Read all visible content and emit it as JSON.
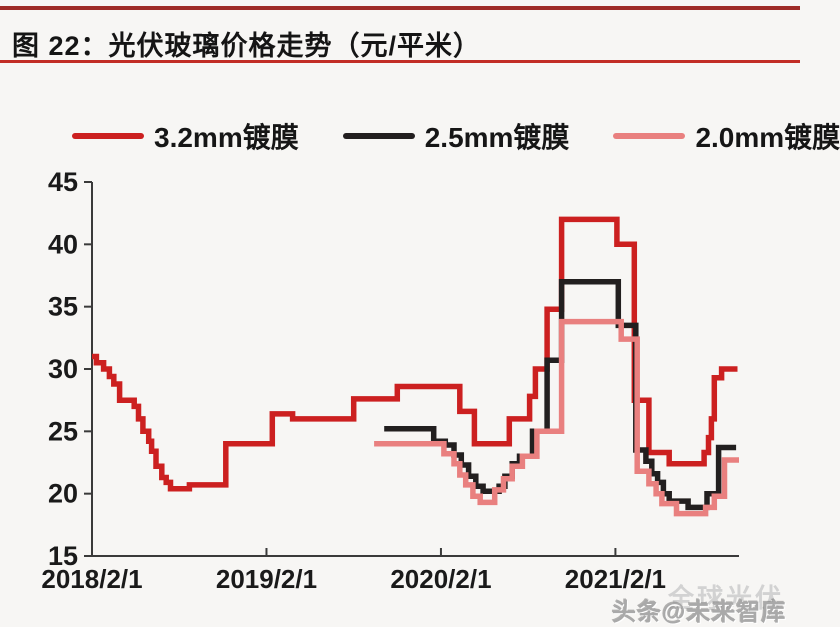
{
  "page": {
    "background": "#f7f6f4"
  },
  "header": {
    "title": "图 22：光伏玻璃价格走势（元/平米）",
    "top_rule_color": "#9e2b27",
    "under_rule_color": "#c22d26"
  },
  "legend": {
    "items": [
      {
        "label": "3.2mm镀膜",
        "color": "#cc2020"
      },
      {
        "label": "2.5mm镀膜",
        "color": "#221f1f"
      },
      {
        "label": "2.0mm镀膜",
        "color": "#e9807f"
      }
    ]
  },
  "watermark": {
    "back_text": "全球光伏",
    "front_text": "头条@未来智库"
  },
  "chart_data": {
    "type": "line",
    "title": "光伏玻璃价格走势（元/平米）",
    "line_style": "step-after",
    "grid": false,
    "legend_position": "top",
    "x_unit": "months since 2018/2/1",
    "x_range": [
      0,
      44.5
    ],
    "x_ticks": [
      {
        "month": 0,
        "label": "2018/2/1"
      },
      {
        "month": 12,
        "label": "2019/2/1"
      },
      {
        "month": 24,
        "label": "2020/2/1"
      },
      {
        "month": 36,
        "label": "2021/2/1"
      }
    ],
    "ylim": [
      15,
      45
    ],
    "y_ticks": [
      15,
      20,
      25,
      30,
      35,
      40,
      45
    ],
    "axis_color": "#3a3a3a",
    "tick_label_color": "#1a1a1a",
    "series": [
      {
        "name": "3.2mm镀膜",
        "id": "series-3-2mm",
        "color": "#cc2020",
        "points": [
          [
            0,
            31
          ],
          [
            0.3,
            30.5
          ],
          [
            0.8,
            30
          ],
          [
            1.2,
            29.4
          ],
          [
            1.5,
            28.8
          ],
          [
            1.9,
            27.5
          ],
          [
            2.9,
            27
          ],
          [
            3.2,
            26
          ],
          [
            3.5,
            25
          ],
          [
            3.9,
            24.2
          ],
          [
            4.1,
            23.4
          ],
          [
            4.4,
            22.2
          ],
          [
            4.8,
            21.3
          ],
          [
            5.1,
            20.9
          ],
          [
            5.4,
            20.4
          ],
          [
            6.7,
            20.7
          ],
          [
            9.2,
            24
          ],
          [
            12.4,
            26.4
          ],
          [
            13.8,
            26
          ],
          [
            18,
            27.6
          ],
          [
            21,
            28.6
          ],
          [
            25.3,
            26.6
          ],
          [
            26.3,
            24
          ],
          [
            28.7,
            26
          ],
          [
            30.1,
            27.8
          ],
          [
            30.5,
            30
          ],
          [
            31.3,
            34.8
          ],
          [
            32.3,
            42
          ],
          [
            36.1,
            40
          ],
          [
            37.3,
            27.5
          ],
          [
            38.3,
            23.3
          ],
          [
            39.7,
            22.4
          ],
          [
            42.1,
            23.3
          ],
          [
            42.4,
            24.5
          ],
          [
            42.6,
            26
          ],
          [
            42.8,
            29.3
          ],
          [
            43.3,
            30
          ],
          [
            44.4,
            30
          ]
        ]
      },
      {
        "name": "2.5mm镀膜",
        "id": "series-2-5mm",
        "color": "#221f1f",
        "points": [
          [
            20.1,
            25.2
          ],
          [
            23.5,
            24.2
          ],
          [
            24.3,
            23.9
          ],
          [
            24.9,
            23.1
          ],
          [
            25.4,
            22.3
          ],
          [
            25.9,
            21.4
          ],
          [
            26.4,
            20.6
          ],
          [
            26.9,
            20.2
          ],
          [
            28,
            20.6
          ],
          [
            28.4,
            21.4
          ],
          [
            28.9,
            22.4
          ],
          [
            29.4,
            23
          ],
          [
            30.3,
            25
          ],
          [
            31.3,
            30.7
          ],
          [
            32.3,
            37
          ],
          [
            36.2,
            33.5
          ],
          [
            37.4,
            23.5
          ],
          [
            38.1,
            22.6
          ],
          [
            38.5,
            21.6
          ],
          [
            38.9,
            20.9
          ],
          [
            39.3,
            20
          ],
          [
            39.7,
            19.4
          ],
          [
            41,
            18.9
          ],
          [
            42.3,
            20
          ],
          [
            43.1,
            23.7
          ],
          [
            44.3,
            23.7
          ]
        ]
      },
      {
        "name": "2.0mm镀膜",
        "id": "series-2-0mm",
        "color": "#e9807f",
        "points": [
          [
            19.4,
            24
          ],
          [
            24.2,
            23.2
          ],
          [
            24.9,
            22.4
          ],
          [
            25.3,
            21.5
          ],
          [
            25.7,
            20.7
          ],
          [
            26.2,
            19.8
          ],
          [
            26.7,
            19.3
          ],
          [
            27.7,
            20.3
          ],
          [
            28.3,
            21.2
          ],
          [
            28.9,
            22.2
          ],
          [
            29.6,
            23
          ],
          [
            30.6,
            25
          ],
          [
            32.3,
            33.8
          ],
          [
            36.4,
            32.4
          ],
          [
            37.5,
            21.8
          ],
          [
            38.3,
            20.8
          ],
          [
            38.8,
            20
          ],
          [
            39.2,
            19.2
          ],
          [
            40.2,
            18.4
          ],
          [
            42.2,
            18.9
          ],
          [
            42.8,
            19.8
          ],
          [
            43.5,
            22.7
          ],
          [
            44.5,
            22.7
          ]
        ]
      }
    ]
  }
}
